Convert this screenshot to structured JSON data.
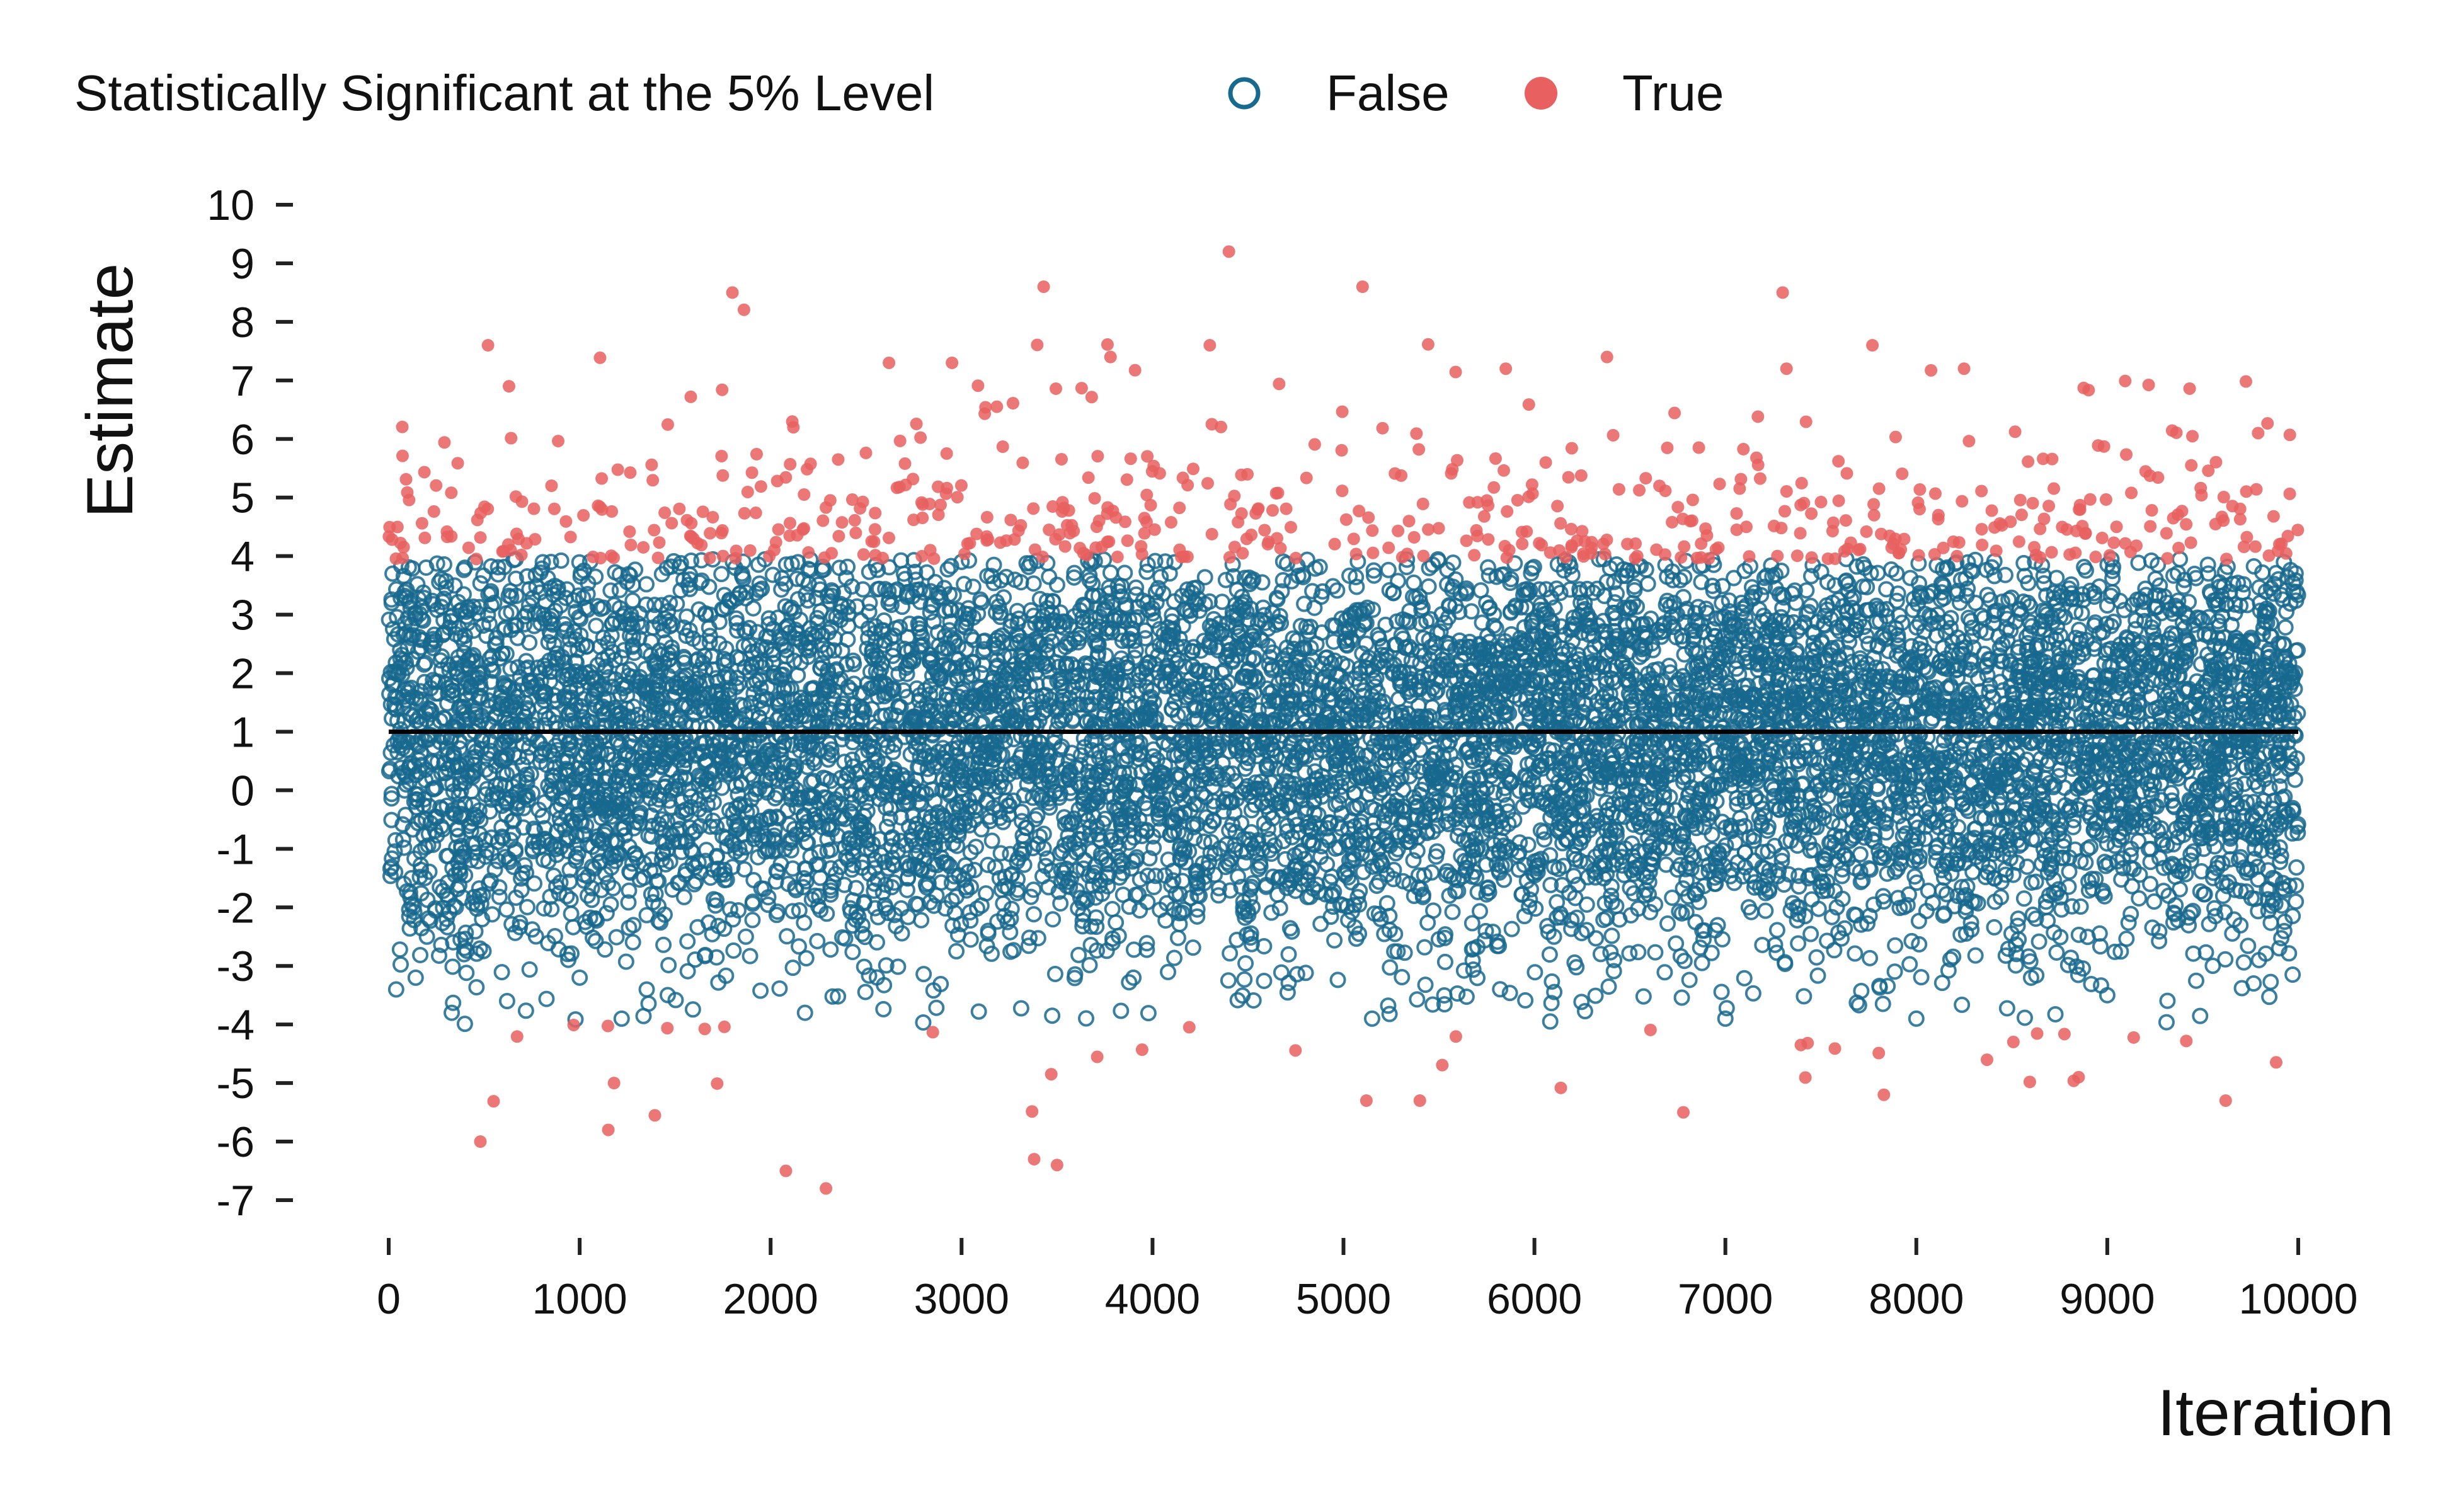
{
  "chart_data": {
    "type": "scatter",
    "title": "",
    "xlabel": "Iteration",
    "ylabel": "Estimate",
    "xlim": [
      0,
      10000
    ],
    "ylim": [
      -7,
      10
    ],
    "x_ticks": [
      "0",
      "1000",
      "2000",
      "3000",
      "4000",
      "5000",
      "6000",
      "7000",
      "8000",
      "9000",
      "10000"
    ],
    "y_ticks": [
      "10",
      "9",
      "8",
      "7",
      "6",
      "5",
      "4",
      "3",
      "2",
      "1",
      "0",
      "-1",
      "-2",
      "-3",
      "-4",
      "-5",
      "-6",
      "-7"
    ],
    "grid": false,
    "legend": {
      "title": "Statistically Significant at the 5% Level",
      "placement": "top",
      "entries": [
        {
          "label": "False",
          "marker": "open-circle",
          "color": "#17698e"
        },
        {
          "label": "True",
          "marker": "filled-circle",
          "color": "#e8605f"
        }
      ]
    },
    "reference_line": {
      "y": 1,
      "color": "#000000"
    },
    "series": [
      {
        "name": "False",
        "color": "#17698e",
        "n_points": 9400,
        "description": "non-significant estimates between about -4 and 4",
        "points": [
          [
            20,
            3.7
          ],
          [
            60,
            2.4
          ],
          [
            120,
            -1.5
          ],
          [
            200,
            -2.5
          ],
          [
            330,
            -3.8
          ],
          [
            620,
            -3.6
          ],
          [
            1000,
            -3.2
          ],
          [
            1220,
            -3.9
          ],
          [
            2180,
            -3.8
          ],
          [
            3000,
            3.9
          ],
          [
            3900,
            -3.2
          ],
          [
            5150,
            -3.9
          ],
          [
            7000,
            -3.9
          ],
          [
            8000,
            -3.9
          ],
          [
            9000,
            -3.5
          ],
          [
            9800,
            3.2
          ]
        ]
      },
      {
        "name": "True",
        "color": "#e8605f",
        "n_points": 600,
        "description": "significant estimates above about 4 or below about -4",
        "points": [
          [
            480,
            -6.0
          ],
          [
            520,
            7.6
          ],
          [
            630,
            6.9
          ],
          [
            1150,
            -5.8
          ],
          [
            1180,
            -5.0
          ],
          [
            1800,
            8.5
          ],
          [
            2080,
            -6.5
          ],
          [
            2290,
            -6.8
          ],
          [
            2620,
            7.3
          ],
          [
            2950,
            7.3
          ],
          [
            3380,
            -6.3
          ],
          [
            3430,
            8.6
          ],
          [
            3500,
            -6.4
          ],
          [
            3780,
            7.4
          ],
          [
            4300,
            7.6
          ],
          [
            4400,
            9.2
          ],
          [
            5100,
            8.6
          ],
          [
            5120,
            -5.3
          ],
          [
            5400,
            -5.3
          ],
          [
            5850,
            7.2
          ],
          [
            6380,
            7.4
          ],
          [
            6780,
            -5.5
          ],
          [
            7300,
            8.5
          ],
          [
            7320,
            7.2
          ],
          [
            7770,
            7.6
          ],
          [
            7830,
            -5.2
          ],
          [
            8250,
            7.2
          ],
          [
            8850,
            -4.9
          ],
          [
            9620,
            -5.3
          ],
          [
            9790,
            6.1
          ]
        ]
      }
    ]
  }
}
